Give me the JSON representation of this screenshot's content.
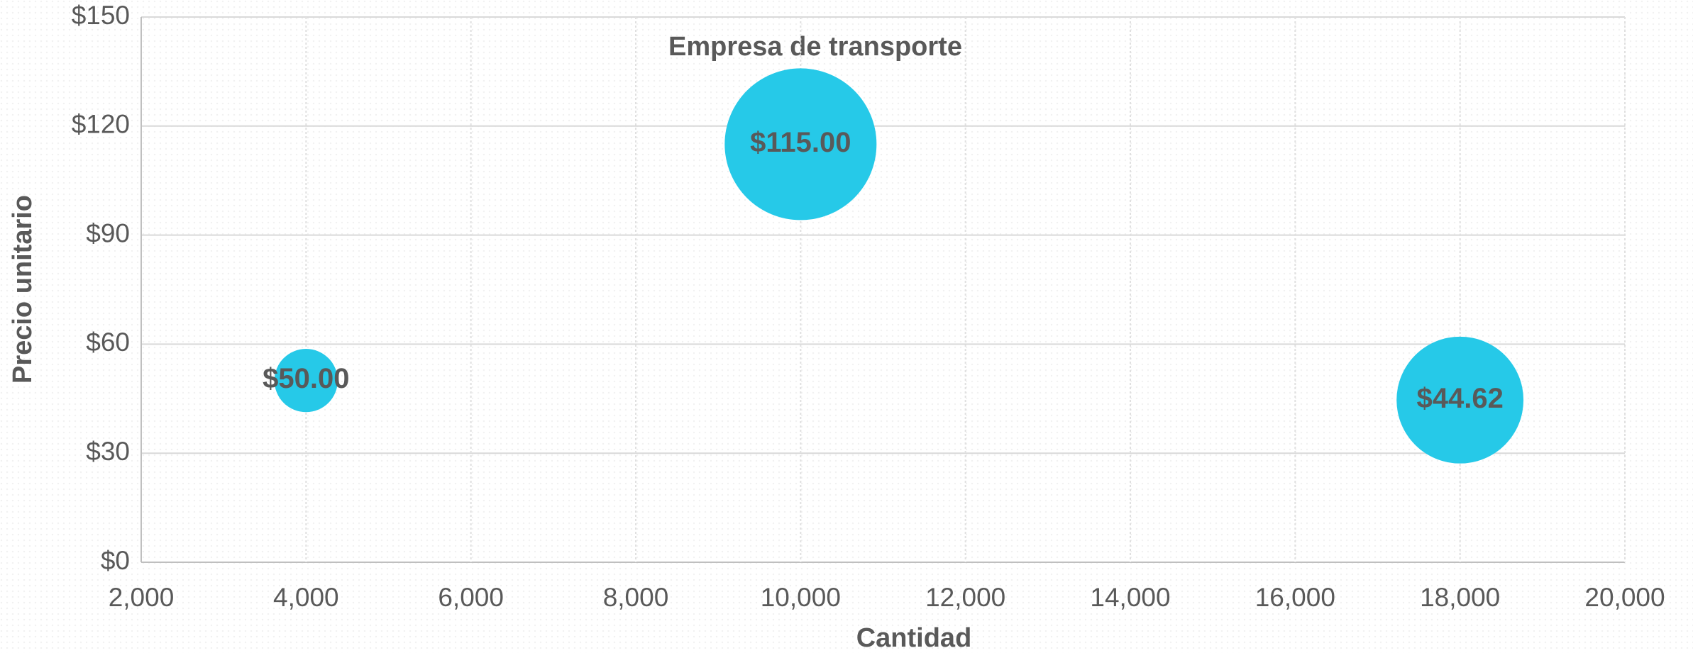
{
  "chart_data": {
    "type": "bubble",
    "series": [
      {
        "name": "Empresa de transporte",
        "color": "#26c9e8",
        "x": [
          4000,
          10000,
          18000
        ],
        "values": [
          50,
          115,
          44.62
        ],
        "value_labels": [
          "$50.00",
          "$115.00",
          "$44.62"
        ],
        "sizes": [
          200000,
          1150000,
          803160
        ]
      }
    ],
    "x_label": "Cantidad",
    "y_label": "Precio unitario",
    "xlim": [
      2000,
      20000
    ],
    "xticks": [
      {
        "value": 2000,
        "label": "2,000"
      },
      {
        "value": 4000,
        "label": "4,000"
      },
      {
        "value": 6000,
        "label": "6,000"
      },
      {
        "value": 8000,
        "label": "8,000"
      },
      {
        "value": 10000,
        "label": "10,000"
      },
      {
        "value": 12000,
        "label": "12,000"
      },
      {
        "value": 14000,
        "label": "14,000"
      },
      {
        "value": 16000,
        "label": "16,000"
      },
      {
        "value": 18000,
        "label": "18,000"
      },
      {
        "value": 20000,
        "label": "20,000"
      }
    ],
    "ylim": [
      0,
      150
    ],
    "yticks": [
      {
        "value": 0,
        "label": "$0"
      },
      {
        "value": 30,
        "label": "$30"
      },
      {
        "value": 60,
        "label": "$60"
      },
      {
        "value": 90,
        "label": "$90"
      },
      {
        "value": 120,
        "label": "$120"
      },
      {
        "value": 150,
        "label": "$150"
      }
    ],
    "grid": true
  }
}
